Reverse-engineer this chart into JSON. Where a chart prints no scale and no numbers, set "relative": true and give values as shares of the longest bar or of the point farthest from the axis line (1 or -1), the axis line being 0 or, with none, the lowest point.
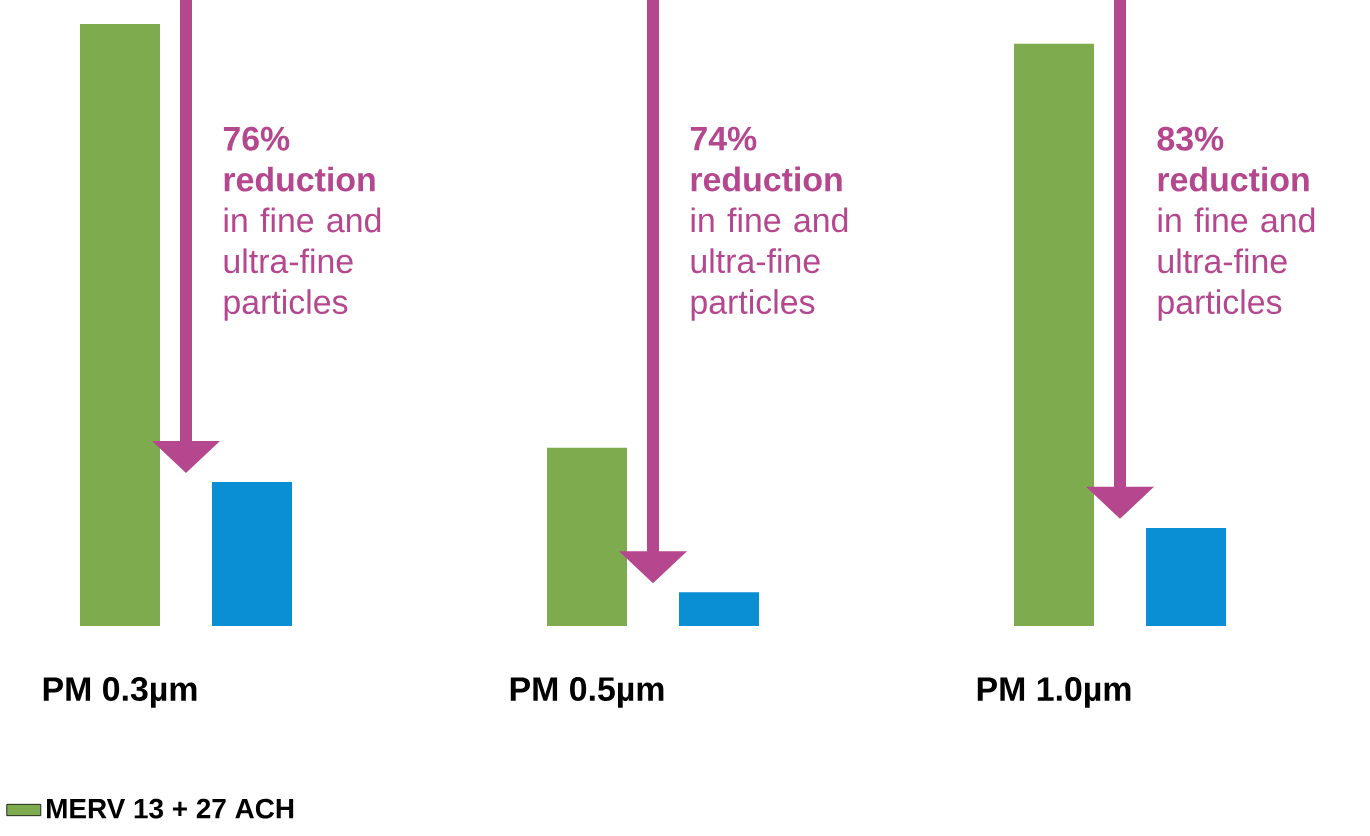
{
  "chart_data": {
    "type": "bar",
    "relative": true,
    "categories": [
      "PM 0.3µm",
      "PM 0.5µm",
      "PM 1.0µm"
    ],
    "series": [
      {
        "name": "MERV 13 + 27 ACH",
        "color": "#7fab4f",
        "values": [
          1.0,
          0.296,
          0.967
        ]
      },
      {
        "color": "#0a8fd4",
        "values": [
          0.239,
          0.056,
          0.163
        ]
      }
    ],
    "annotations": [
      "**76% reduction** in fine and ultra-fine particles",
      "**74% reduction** in fine and ultra-fine particles",
      "**83% reduction** in fine and ultra-fine particles"
    ],
    "legend": "bottom left"
  }
}
